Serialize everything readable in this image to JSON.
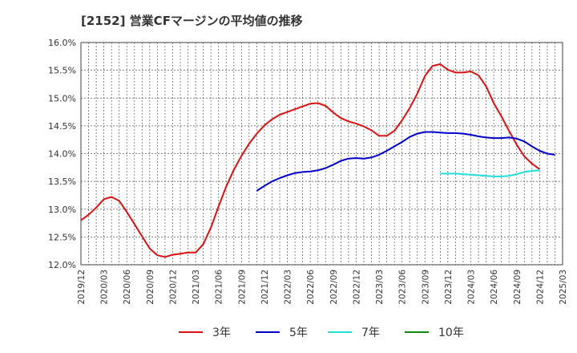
{
  "chart_data": {
    "type": "line",
    "title": "[2152]  営業CFマージンの平均値の推移",
    "xlabel": "",
    "ylabel": "",
    "ylim": [
      12.0,
      16.0
    ],
    "yticks": [
      "16.0%",
      "15.5%",
      "15.0%",
      "14.5%",
      "14.0%",
      "13.5%",
      "13.0%",
      "12.5%",
      "12.0%"
    ],
    "ytick_values": [
      16.0,
      15.5,
      15.0,
      14.5,
      14.0,
      13.5,
      13.0,
      12.5,
      12.0
    ],
    "x_start": "2019/12",
    "x_end": "2025/03",
    "xticks": [
      "2019/12",
      "2020/03",
      "2020/06",
      "2020/09",
      "2020/12",
      "2021/03",
      "2021/06",
      "2021/09",
      "2021/12",
      "2022/03",
      "2022/06",
      "2022/09",
      "2022/12",
      "2023/03",
      "2023/06",
      "2023/09",
      "2023/12",
      "2024/03",
      "2024/06",
      "2024/09",
      "2024/12",
      "2025/03"
    ],
    "grid": true,
    "legend_position": "bottom",
    "series": [
      {
        "name": "3年",
        "color": "#dd1111",
        "start": "2019/12",
        "values": [
          12.8,
          12.9,
          13.03,
          13.18,
          13.22,
          13.15,
          12.95,
          12.73,
          12.51,
          12.29,
          12.17,
          12.14,
          12.18,
          12.2,
          12.22,
          12.22,
          12.37,
          12.67,
          13.05,
          13.41,
          13.71,
          13.96,
          14.18,
          14.36,
          14.51,
          14.62,
          14.7,
          14.75,
          14.8,
          14.85,
          14.9,
          14.91,
          14.86,
          14.74,
          14.64,
          14.58,
          14.54,
          14.49,
          14.42,
          14.32,
          14.32,
          14.41,
          14.6,
          14.82,
          15.08,
          15.4,
          15.58,
          15.61,
          15.51,
          15.46,
          15.46,
          15.48,
          15.41,
          15.21,
          14.91,
          14.67,
          14.41,
          14.16,
          13.95,
          13.82,
          13.72
        ]
      },
      {
        "name": "5年",
        "color": "#0000cc",
        "start": "2021/11",
        "values": [
          13.33,
          13.42,
          13.5,
          13.56,
          13.61,
          13.65,
          13.67,
          13.68,
          13.7,
          13.74,
          13.8,
          13.87,
          13.91,
          13.92,
          13.91,
          13.93,
          13.98,
          14.05,
          14.13,
          14.21,
          14.3,
          14.36,
          14.39,
          14.39,
          14.38,
          14.37,
          14.37,
          14.36,
          14.34,
          14.31,
          14.29,
          14.28,
          14.28,
          14.29,
          14.27,
          14.22,
          14.13,
          14.05,
          14.0,
          13.98
        ]
      },
      {
        "name": "7年",
        "color": "#22dddd",
        "start": "2023/11",
        "values": [
          13.64,
          13.64,
          13.64,
          13.63,
          13.62,
          13.61,
          13.6,
          13.59,
          13.59,
          13.6,
          13.63,
          13.67,
          13.69,
          13.7
        ]
      },
      {
        "name": "10年",
        "color": "#118811",
        "start": "2024/12",
        "values": []
      }
    ]
  }
}
